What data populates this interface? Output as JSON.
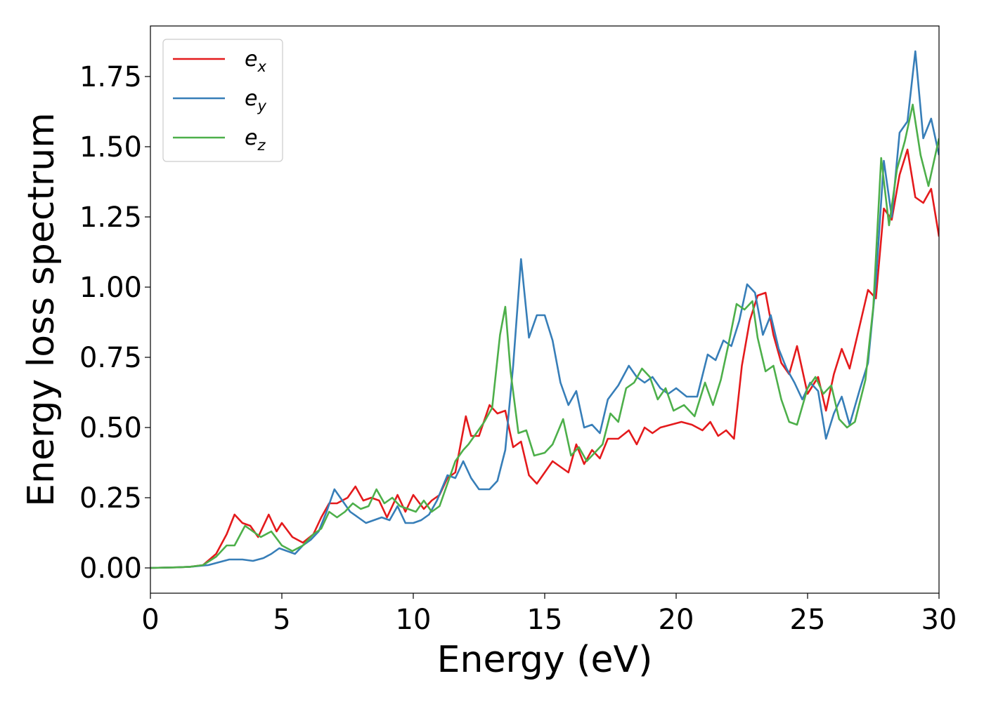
{
  "chart_data": {
    "type": "line",
    "title": "",
    "xlabel": "Energy (eV)",
    "ylabel": "Energy loss spectrum",
    "xlim": [
      0,
      30
    ],
    "ylim": [
      -0.09,
      1.93
    ],
    "xticks": [
      "0",
      "5",
      "10",
      "15",
      "20",
      "25",
      "30"
    ],
    "yticks": [
      "0.00",
      "0.25",
      "0.50",
      "0.75",
      "1.00",
      "1.25",
      "1.50",
      "1.75"
    ],
    "grid": false,
    "legend_position": "top-left",
    "series": [
      {
        "name": "e_x",
        "legend_base": "e",
        "legend_sub": "x",
        "color": "#e41a1c",
        "points": [
          [
            0,
            0
          ],
          [
            1,
            0.002
          ],
          [
            1.5,
            0.004
          ],
          [
            2,
            0.01
          ],
          [
            2.5,
            0.05
          ],
          [
            2.9,
            0.12
          ],
          [
            3.2,
            0.19
          ],
          [
            3.5,
            0.16
          ],
          [
            3.8,
            0.15
          ],
          [
            4.1,
            0.11
          ],
          [
            4.5,
            0.19
          ],
          [
            4.8,
            0.13
          ],
          [
            5.0,
            0.16
          ],
          [
            5.4,
            0.11
          ],
          [
            5.8,
            0.09
          ],
          [
            6.2,
            0.12
          ],
          [
            6.5,
            0.18
          ],
          [
            6.8,
            0.23
          ],
          [
            7.1,
            0.23
          ],
          [
            7.5,
            0.25
          ],
          [
            7.8,
            0.29
          ],
          [
            8.1,
            0.24
          ],
          [
            8.4,
            0.25
          ],
          [
            8.7,
            0.24
          ],
          [
            9.0,
            0.18
          ],
          [
            9.4,
            0.26
          ],
          [
            9.7,
            0.2
          ],
          [
            10.0,
            0.26
          ],
          [
            10.4,
            0.21
          ],
          [
            10.7,
            0.24
          ],
          [
            11.0,
            0.26
          ],
          [
            11.3,
            0.32
          ],
          [
            11.6,
            0.34
          ],
          [
            12.0,
            0.54
          ],
          [
            12.2,
            0.47
          ],
          [
            12.5,
            0.47
          ],
          [
            12.9,
            0.58
          ],
          [
            13.2,
            0.55
          ],
          [
            13.5,
            0.56
          ],
          [
            13.8,
            0.43
          ],
          [
            14.1,
            0.45
          ],
          [
            14.4,
            0.33
          ],
          [
            14.7,
            0.3
          ],
          [
            15.0,
            0.34
          ],
          [
            15.3,
            0.38
          ],
          [
            15.6,
            0.36
          ],
          [
            15.9,
            0.34
          ],
          [
            16.2,
            0.44
          ],
          [
            16.5,
            0.37
          ],
          [
            16.8,
            0.42
          ],
          [
            17.1,
            0.39
          ],
          [
            17.4,
            0.46
          ],
          [
            17.8,
            0.46
          ],
          [
            18.2,
            0.49
          ],
          [
            18.5,
            0.44
          ],
          [
            18.8,
            0.5
          ],
          [
            19.1,
            0.48
          ],
          [
            19.4,
            0.5
          ],
          [
            19.8,
            0.51
          ],
          [
            20.2,
            0.52
          ],
          [
            20.6,
            0.51
          ],
          [
            21.0,
            0.49
          ],
          [
            21.3,
            0.52
          ],
          [
            21.6,
            0.47
          ],
          [
            21.9,
            0.49
          ],
          [
            22.2,
            0.46
          ],
          [
            22.5,
            0.72
          ],
          [
            22.8,
            0.88
          ],
          [
            23.1,
            0.97
          ],
          [
            23.4,
            0.98
          ],
          [
            23.7,
            0.83
          ],
          [
            24.0,
            0.73
          ],
          [
            24.3,
            0.69
          ],
          [
            24.6,
            0.79
          ],
          [
            25.0,
            0.62
          ],
          [
            25.4,
            0.68
          ],
          [
            25.7,
            0.56
          ],
          [
            26.0,
            0.69
          ],
          [
            26.3,
            0.78
          ],
          [
            26.6,
            0.71
          ],
          [
            27.0,
            0.87
          ],
          [
            27.3,
            0.99
          ],
          [
            27.6,
            0.96
          ],
          [
            27.9,
            1.28
          ],
          [
            28.2,
            1.24
          ],
          [
            28.5,
            1.4
          ],
          [
            28.8,
            1.49
          ],
          [
            29.1,
            1.32
          ],
          [
            29.4,
            1.3
          ],
          [
            29.7,
            1.35
          ],
          [
            30.0,
            1.18
          ]
        ]
      },
      {
        "name": "e_y",
        "legend_base": "e",
        "legend_sub": "y",
        "color": "#377eb8",
        "points": [
          [
            0,
            0
          ],
          [
            1,
            0.002
          ],
          [
            1.5,
            0.004
          ],
          [
            2.2,
            0.01
          ],
          [
            2.6,
            0.02
          ],
          [
            3.0,
            0.03
          ],
          [
            3.5,
            0.03
          ],
          [
            3.9,
            0.025
          ],
          [
            4.3,
            0.035
          ],
          [
            4.6,
            0.05
          ],
          [
            4.9,
            0.07
          ],
          [
            5.2,
            0.06
          ],
          [
            5.5,
            0.05
          ],
          [
            5.8,
            0.08
          ],
          [
            6.1,
            0.1
          ],
          [
            6.4,
            0.13
          ],
          [
            6.7,
            0.2
          ],
          [
            7.0,
            0.28
          ],
          [
            7.3,
            0.24
          ],
          [
            7.6,
            0.2
          ],
          [
            7.9,
            0.18
          ],
          [
            8.2,
            0.16
          ],
          [
            8.5,
            0.17
          ],
          [
            8.8,
            0.18
          ],
          [
            9.1,
            0.17
          ],
          [
            9.4,
            0.22
          ],
          [
            9.7,
            0.16
          ],
          [
            10.0,
            0.16
          ],
          [
            10.3,
            0.17
          ],
          [
            10.6,
            0.19
          ],
          [
            10.9,
            0.24
          ],
          [
            11.3,
            0.33
          ],
          [
            11.6,
            0.32
          ],
          [
            11.9,
            0.38
          ],
          [
            12.2,
            0.32
          ],
          [
            12.5,
            0.28
          ],
          [
            12.9,
            0.28
          ],
          [
            13.2,
            0.31
          ],
          [
            13.5,
            0.42
          ],
          [
            13.8,
            0.72
          ],
          [
            14.1,
            1.1
          ],
          [
            14.4,
            0.82
          ],
          [
            14.7,
            0.9
          ],
          [
            15.0,
            0.9
          ],
          [
            15.3,
            0.81
          ],
          [
            15.6,
            0.66
          ],
          [
            15.9,
            0.58
          ],
          [
            16.2,
            0.63
          ],
          [
            16.5,
            0.5
          ],
          [
            16.8,
            0.51
          ],
          [
            17.1,
            0.48
          ],
          [
            17.4,
            0.6
          ],
          [
            17.8,
            0.65
          ],
          [
            18.2,
            0.72
          ],
          [
            18.5,
            0.68
          ],
          [
            18.8,
            0.66
          ],
          [
            19.1,
            0.68
          ],
          [
            19.4,
            0.64
          ],
          [
            19.7,
            0.62
          ],
          [
            20.0,
            0.64
          ],
          [
            20.4,
            0.61
          ],
          [
            20.8,
            0.61
          ],
          [
            21.2,
            0.76
          ],
          [
            21.5,
            0.74
          ],
          [
            21.8,
            0.81
          ],
          [
            22.1,
            0.79
          ],
          [
            22.4,
            0.88
          ],
          [
            22.7,
            1.01
          ],
          [
            23.0,
            0.98
          ],
          [
            23.3,
            0.83
          ],
          [
            23.6,
            0.9
          ],
          [
            23.9,
            0.78
          ],
          [
            24.2,
            0.71
          ],
          [
            24.5,
            0.66
          ],
          [
            24.8,
            0.6
          ],
          [
            25.1,
            0.66
          ],
          [
            25.4,
            0.63
          ],
          [
            25.7,
            0.46
          ],
          [
            26.0,
            0.55
          ],
          [
            26.3,
            0.61
          ],
          [
            26.6,
            0.51
          ],
          [
            27.0,
            0.64
          ],
          [
            27.3,
            0.73
          ],
          [
            27.6,
            1.02
          ],
          [
            27.9,
            1.45
          ],
          [
            28.2,
            1.25
          ],
          [
            28.5,
            1.55
          ],
          [
            28.8,
            1.59
          ],
          [
            29.1,
            1.84
          ],
          [
            29.4,
            1.53
          ],
          [
            29.7,
            1.6
          ],
          [
            30.0,
            1.47
          ]
        ]
      },
      {
        "name": "e_z",
        "legend_base": "e",
        "legend_sub": "z",
        "color": "#4daf4a",
        "points": [
          [
            0,
            0
          ],
          [
            1,
            0.002
          ],
          [
            1.5,
            0.004
          ],
          [
            2.0,
            0.01
          ],
          [
            2.5,
            0.04
          ],
          [
            2.9,
            0.08
          ],
          [
            3.2,
            0.08
          ],
          [
            3.6,
            0.15
          ],
          [
            3.9,
            0.13
          ],
          [
            4.2,
            0.11
          ],
          [
            4.6,
            0.13
          ],
          [
            5.0,
            0.08
          ],
          [
            5.4,
            0.06
          ],
          [
            5.8,
            0.08
          ],
          [
            6.2,
            0.12
          ],
          [
            6.5,
            0.14
          ],
          [
            6.8,
            0.2
          ],
          [
            7.1,
            0.18
          ],
          [
            7.4,
            0.2
          ],
          [
            7.7,
            0.23
          ],
          [
            8.0,
            0.21
          ],
          [
            8.3,
            0.22
          ],
          [
            8.6,
            0.28
          ],
          [
            8.9,
            0.23
          ],
          [
            9.2,
            0.25
          ],
          [
            9.5,
            0.22
          ],
          [
            9.8,
            0.21
          ],
          [
            10.1,
            0.2
          ],
          [
            10.4,
            0.24
          ],
          [
            10.7,
            0.2
          ],
          [
            11.0,
            0.22
          ],
          [
            11.3,
            0.3
          ],
          [
            11.6,
            0.38
          ],
          [
            11.9,
            0.42
          ],
          [
            12.1,
            0.44
          ],
          [
            12.4,
            0.48
          ],
          [
            12.7,
            0.52
          ],
          [
            13.0,
            0.57
          ],
          [
            13.3,
            0.83
          ],
          [
            13.5,
            0.93
          ],
          [
            13.7,
            0.7
          ],
          [
            14.0,
            0.48
          ],
          [
            14.3,
            0.49
          ],
          [
            14.6,
            0.4
          ],
          [
            15.0,
            0.41
          ],
          [
            15.3,
            0.44
          ],
          [
            15.7,
            0.53
          ],
          [
            16.0,
            0.4
          ],
          [
            16.3,
            0.43
          ],
          [
            16.6,
            0.38
          ],
          [
            16.9,
            0.41
          ],
          [
            17.2,
            0.44
          ],
          [
            17.5,
            0.55
          ],
          [
            17.8,
            0.52
          ],
          [
            18.1,
            0.64
          ],
          [
            18.4,
            0.66
          ],
          [
            18.7,
            0.71
          ],
          [
            19.0,
            0.68
          ],
          [
            19.3,
            0.6
          ],
          [
            19.6,
            0.64
          ],
          [
            19.9,
            0.56
          ],
          [
            20.3,
            0.58
          ],
          [
            20.7,
            0.54
          ],
          [
            21.1,
            0.66
          ],
          [
            21.4,
            0.58
          ],
          [
            21.7,
            0.67
          ],
          [
            22.0,
            0.8
          ],
          [
            22.3,
            0.94
          ],
          [
            22.6,
            0.92
          ],
          [
            22.9,
            0.95
          ],
          [
            23.1,
            0.82
          ],
          [
            23.4,
            0.7
          ],
          [
            23.7,
            0.72
          ],
          [
            24.0,
            0.6
          ],
          [
            24.3,
            0.52
          ],
          [
            24.6,
            0.51
          ],
          [
            25.0,
            0.64
          ],
          [
            25.3,
            0.68
          ],
          [
            25.6,
            0.62
          ],
          [
            25.9,
            0.65
          ],
          [
            26.2,
            0.53
          ],
          [
            26.5,
            0.5
          ],
          [
            26.8,
            0.52
          ],
          [
            27.2,
            0.67
          ],
          [
            27.5,
            0.93
          ],
          [
            27.8,
            1.46
          ],
          [
            28.1,
            1.22
          ],
          [
            28.4,
            1.42
          ],
          [
            28.7,
            1.52
          ],
          [
            29.0,
            1.65
          ],
          [
            29.3,
            1.47
          ],
          [
            29.6,
            1.36
          ],
          [
            30.0,
            1.53
          ]
        ]
      }
    ]
  }
}
